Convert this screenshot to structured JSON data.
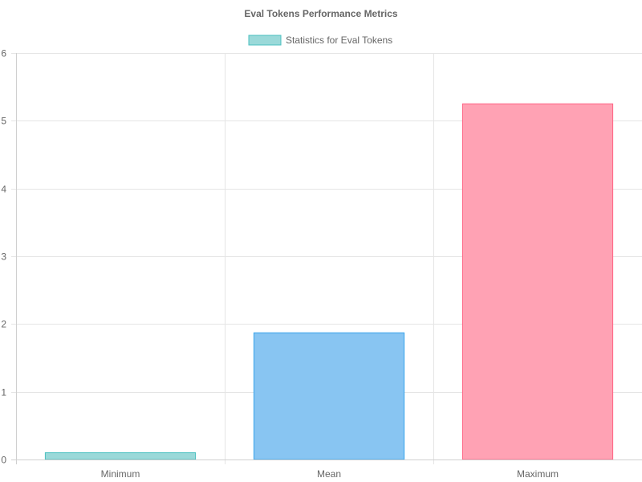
{
  "chart_data": {
    "type": "bar",
    "title": "Eval Tokens Performance Metrics",
    "categories": [
      "Minimum",
      "Mean",
      "Maximum"
    ],
    "series": [
      {
        "name": "Statistics for Eval Tokens",
        "values": [
          0.1,
          1.87,
          5.25
        ]
      }
    ],
    "ylim": [
      0,
      6
    ],
    "yticks": [
      "0",
      "1",
      "2",
      "3",
      "4",
      "5",
      "6"
    ],
    "grid": true,
    "legend_position": "top",
    "colors": {
      "bar_fills": [
        "#9ad9d9",
        "#88c5f2",
        "#ffa2b4"
      ],
      "bar_strokes": [
        "#4bc0c0",
        "#36a2eb",
        "#ff6384"
      ],
      "legend_fill": "#9ad9d9",
      "legend_stroke": "#4bc0c0"
    }
  }
}
